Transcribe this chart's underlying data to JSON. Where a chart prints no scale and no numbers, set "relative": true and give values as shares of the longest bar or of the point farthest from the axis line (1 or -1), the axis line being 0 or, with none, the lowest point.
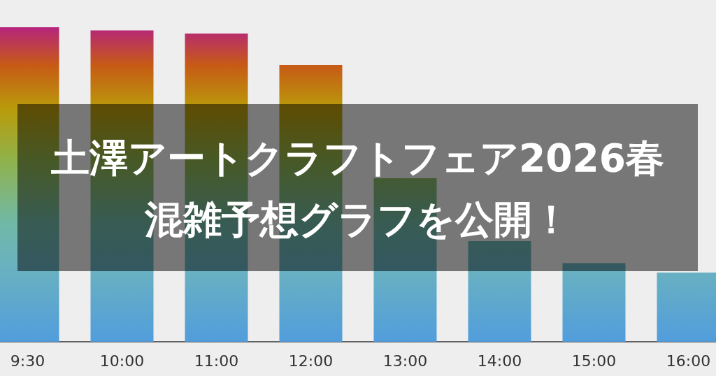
{
  "chart_data": {
    "type": "bar",
    "title": "土澤アートクラフトフェア2026春",
    "subtitle": "混雑予想グラフを公開！",
    "categories": [
      "9:30",
      "10:00",
      "11:00",
      "12:00",
      "13:00",
      "14:00",
      "15:00",
      "16:00"
    ],
    "values": [
      1,
      0.99,
      0.98,
      0.88,
      0.52,
      0.32,
      0.25,
      0.22
    ],
    "relative": true,
    "color": "#519ddc"
  }
}
